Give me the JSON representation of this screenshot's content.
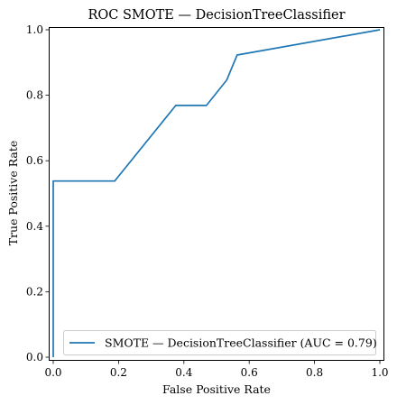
{
  "chart_data": {
    "type": "line",
    "title": "ROC SMOTE — DecisionTreeClassifier",
    "xlabel": "False Positive Rate",
    "ylabel": "True Positive Rate",
    "xlim": [
      0,
      1
    ],
    "ylim": [
      0,
      1
    ],
    "xticks": [
      "0.0",
      "0.2",
      "0.4",
      "0.6",
      "0.8",
      "1.0"
    ],
    "yticks": [
      "0.0",
      "0.2",
      "0.4",
      "0.6",
      "0.8",
      "1.0"
    ],
    "grid": false,
    "legend_position": "bottom-right",
    "series": [
      {
        "name": "SMOTE — DecisionTreeClassifier (AUC = 0.79)",
        "color": "#1f77b4",
        "x": [
          0.0,
          0.0,
          0.188,
          0.375,
          0.469,
          0.531,
          0.563,
          1.0
        ],
        "y": [
          0.0,
          0.538,
          0.538,
          0.769,
          0.769,
          0.846,
          0.923,
          1.0
        ]
      }
    ]
  }
}
